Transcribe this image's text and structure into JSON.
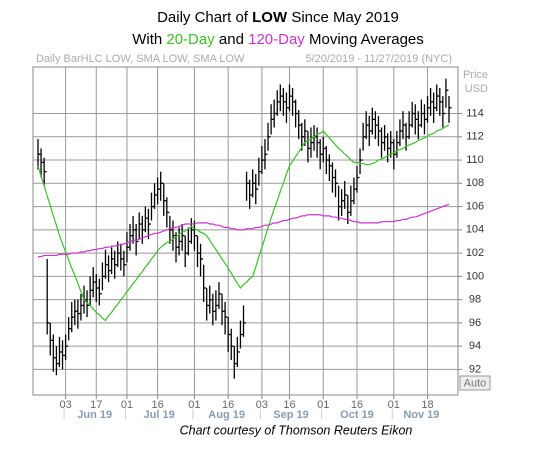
{
  "chart_data": {
    "type": "ohlc",
    "title": {
      "prefix": "Daily Chart of",
      "ticker": "LOW",
      "suffix": "Since May 2019"
    },
    "subtitle": {
      "start": "With",
      "middle": "and",
      "end": "Moving Averages"
    },
    "header": "Daily BarHLC LOW, SMA LOW, SMA LOW",
    "date_range": "5/20/2019 - 11/27/2019 (NYC)",
    "y_axis_label": [
      "Price",
      "USD"
    ],
    "scale_mode": "Auto",
    "caption": "Chart courtesy of Thomson Reuters Eikon",
    "ylim": [
      89.8,
      118
    ],
    "yticks": [
      92,
      94,
      96,
      98,
      100,
      102,
      104,
      106,
      108,
      110,
      112,
      114
    ],
    "grid": true,
    "categories": [
      null,
      null,
      null,
      null,
      null,
      null,
      null,
      null,
      null,
      "03",
      null,
      null,
      null,
      null,
      null,
      null,
      null,
      null,
      null,
      "17",
      null,
      null,
      null,
      null,
      null,
      null,
      null,
      null,
      null,
      "01",
      null,
      null,
      null,
      null,
      null,
      null,
      null,
      null,
      null,
      "16",
      null,
      null,
      null,
      null,
      null,
      null,
      null,
      null,
      null,
      null,
      null,
      "01",
      null,
      null,
      null,
      null,
      null,
      null,
      null,
      null,
      null,
      null,
      "16",
      null,
      null,
      null,
      null,
      null,
      null,
      null,
      null,
      null,
      null,
      "03",
      null,
      null,
      null,
      null,
      null,
      null,
      null,
      null,
      "16",
      null,
      null,
      null,
      null,
      null,
      null,
      null,
      null,
      null,
      null,
      "01",
      null,
      null,
      null,
      null,
      null,
      null,
      null,
      null,
      null,
      null,
      "16",
      null,
      null,
      null,
      null,
      null,
      null,
      null,
      null,
      null,
      null,
      null,
      "01",
      null,
      null,
      null,
      null,
      null,
      null,
      null,
      null,
      null,
      null,
      "18",
      null,
      null,
      null,
      null,
      null,
      null,
      null
    ],
    "months": [
      {
        "label": "Jun 19",
        "start": 9,
        "end": 28
      },
      {
        "label": "Jul 19",
        "start": 29,
        "end": 50
      },
      {
        "label": "Aug 19",
        "start": 51,
        "end": 72
      },
      {
        "label": "Sep 19",
        "start": 73,
        "end": 92
      },
      {
        "label": "Oct 19",
        "start": 93,
        "end": 115
      },
      {
        "label": "Nov 19",
        "start": 116,
        "end": 134
      }
    ],
    "bars": {
      "color": "#000000",
      "high": [
        111.8,
        111.0,
        110.2,
        101.5,
        96.0,
        95.0,
        94.0,
        94.8,
        94.5,
        95.0,
        96.5,
        97.8,
        98.0,
        98.0,
        98.5,
        99.2,
        98.8,
        100.0,
        100.8,
        100.2,
        99.8,
        101.2,
        102.3,
        101.8,
        102.5,
        102.2,
        103.0,
        102.8,
        102.2,
        103.8,
        104.5,
        105.2,
        104.5,
        105.5,
        105.2,
        106.0,
        105.8,
        107.2,
        108.0,
        108.5,
        109.0,
        108.0,
        106.8,
        105.2,
        104.8,
        103.8,
        104.2,
        104.5,
        103.5,
        104.2,
        105.0,
        104.8,
        103.5,
        102.8,
        101.0,
        99.0,
        99.2,
        98.5,
        98.8,
        99.5,
        98.5,
        97.8,
        96.5,
        95.5,
        94.0,
        94.8,
        96.2,
        97.5,
        109.0,
        108.3,
        109.2,
        108.8,
        110.2,
        111.2,
        111.8,
        113.2,
        114.8,
        115.2,
        116.0,
        116.5,
        116.2,
        115.8,
        116.5,
        116.2,
        115.2,
        114.3,
        113.2,
        113.5,
        112.5,
        112.8,
        113.0,
        112.8,
        111.8,
        112.0,
        111.2,
        110.5,
        109.8,
        109.2,
        107.8,
        107.5,
        108.2,
        107.0,
        107.8,
        108.5,
        109.5,
        111.0,
        113.2,
        114.2,
        113.8,
        114.5,
        114.2,
        113.8,
        112.8,
        113.0,
        112.3,
        112.5,
        111.8,
        112.5,
        113.5,
        114.2,
        113.2,
        114.2,
        115.0,
        114.8,
        114.2,
        115.2,
        114.8,
        115.5,
        116.2,
        115.8,
        116.5,
        116.2,
        115.5,
        117.0,
        115.5
      ],
      "low": [
        109.2,
        108.5,
        107.8,
        95.0,
        93.2,
        91.8,
        91.5,
        92.2,
        92.0,
        92.8,
        94.5,
        95.2,
        95.8,
        95.5,
        96.2,
        96.8,
        96.5,
        97.5,
        98.2,
        97.8,
        97.5,
        98.8,
        99.8,
        99.5,
        100.2,
        99.8,
        100.8,
        100.5,
        100.0,
        101.2,
        102.2,
        102.8,
        101.8,
        103.2,
        102.8,
        103.8,
        103.2,
        104.8,
        105.8,
        106.2,
        106.5,
        105.2,
        104.2,
        102.8,
        102.2,
        101.2,
        101.8,
        102.2,
        100.8,
        101.8,
        102.8,
        102.2,
        100.8,
        100.0,
        97.8,
        96.2,
        96.8,
        95.8,
        96.2,
        97.2,
        95.8,
        95.0,
        93.5,
        92.8,
        91.2,
        92.2,
        93.8,
        94.8,
        106.5,
        105.8,
        106.8,
        106.2,
        107.8,
        108.8,
        109.2,
        110.8,
        112.2,
        112.8,
        113.8,
        114.2,
        113.8,
        113.2,
        114.2,
        113.8,
        112.8,
        111.8,
        110.8,
        111.2,
        109.8,
        110.2,
        110.8,
        110.2,
        109.2,
        109.8,
        108.8,
        108.2,
        107.2,
        106.8,
        104.8,
        105.2,
        105.8,
        104.5,
        105.2,
        106.2,
        107.2,
        108.8,
        110.8,
        111.8,
        111.2,
        112.2,
        111.8,
        111.2,
        110.2,
        110.8,
        109.8,
        110.2,
        109.2,
        110.2,
        111.2,
        111.8,
        110.8,
        111.8,
        112.8,
        112.2,
        111.8,
        112.8,
        112.2,
        113.2,
        113.8,
        113.2,
        114.2,
        113.8,
        112.8,
        114.5,
        113.2
      ],
      "close": [
        110.5,
        109.8,
        109.0,
        96.0,
        94.5,
        93.0,
        92.5,
        93.5,
        93.2,
        94.0,
        95.5,
        96.5,
        97.0,
        96.8,
        97.5,
        98.0,
        97.5,
        98.8,
        99.5,
        99.0,
        98.5,
        100.0,
        101.0,
        100.5,
        101.5,
        101.0,
        102.0,
        101.5,
        101.0,
        102.5,
        103.5,
        104.0,
        103.0,
        104.5,
        104.0,
        105.0,
        104.5,
        106.0,
        107.0,
        107.5,
        108.0,
        106.5,
        105.5,
        104.0,
        103.5,
        102.5,
        103.0,
        103.5,
        102.0,
        103.0,
        104.0,
        103.5,
        102.0,
        101.5,
        99.0,
        97.5,
        98.0,
        97.0,
        97.5,
        98.5,
        97.0,
        96.5,
        95.0,
        94.0,
        92.5,
        93.5,
        95.0,
        96.0,
        108.0,
        107.0,
        108.0,
        107.5,
        109.0,
        110.0,
        110.5,
        112.0,
        113.5,
        114.0,
        115.0,
        115.5,
        115.0,
        114.5,
        115.5,
        115.0,
        114.0,
        113.0,
        112.0,
        112.5,
        111.0,
        111.5,
        112.0,
        111.5,
        110.5,
        111.0,
        110.0,
        109.5,
        108.5,
        108.0,
        106.0,
        106.5,
        107.0,
        105.5,
        106.5,
        107.5,
        108.5,
        110.0,
        112.0,
        113.0,
        112.5,
        113.5,
        113.0,
        112.5,
        111.5,
        112.0,
        111.0,
        111.5,
        110.5,
        111.5,
        112.5,
        113.0,
        112.0,
        113.0,
        114.0,
        113.5,
        113.0,
        114.0,
        113.5,
        114.5,
        115.0,
        114.5,
        115.5,
        115.0,
        114.0,
        116.0,
        114.5
      ]
    },
    "series": [
      {
        "name": "20-Day",
        "color": "#3cbf2a",
        "values": [
          109.5,
          108.6,
          107.8,
          106.9,
          106.1,
          105.2,
          104.4,
          103.5,
          102.8,
          102.1,
          101.4,
          100.7,
          100.1,
          99.4,
          98.7,
          98.0,
          97.7,
          97.5,
          97.2,
          96.9,
          96.7,
          96.4,
          96.2,
          96.6,
          96.9,
          97.3,
          97.6,
          98.0,
          98.3,
          98.7,
          99.0,
          99.4,
          99.7,
          100.1,
          100.4,
          100.8,
          101.1,
          101.5,
          101.8,
          102.2,
          102.5,
          102.7,
          102.9,
          103.0,
          103.2,
          103.4,
          103.6,
          103.8,
          103.9,
          104.1,
          104.3,
          104.1,
          104.0,
          103.8,
          103.7,
          103.5,
          103.1,
          102.7,
          102.3,
          101.9,
          101.5,
          101.1,
          100.7,
          100.3,
          99.8,
          99.4,
          99.0,
          99.3,
          99.5,
          99.8,
          100.0,
          100.8,
          101.7,
          102.5,
          103.3,
          104.2,
          105.0,
          105.8,
          106.5,
          107.3,
          108.0,
          108.8,
          109.5,
          109.9,
          110.3,
          110.7,
          111.1,
          111.5,
          111.7,
          111.8,
          112.0,
          112.2,
          112.3,
          112.5,
          112.2,
          111.9,
          111.6,
          111.3,
          111.0,
          110.8,
          110.5,
          110.3,
          110.0,
          109.8,
          109.8,
          109.7,
          109.7,
          109.6,
          109.6,
          109.7,
          109.8,
          110.0,
          110.1,
          110.2,
          110.4,
          110.5,
          110.6,
          110.8,
          110.9,
          111.0,
          111.2,
          111.3,
          111.4,
          111.5,
          111.7,
          111.8,
          111.9,
          112.1,
          112.2,
          112.3,
          112.5,
          112.6,
          112.7,
          112.9,
          113.0
        ]
      },
      {
        "name": "120-Day",
        "color": "#cc33cc",
        "values": [
          101.7,
          101.7,
          101.8,
          101.8,
          101.8,
          101.8,
          101.8,
          101.9,
          101.9,
          101.9,
          101.9,
          102.0,
          102.0,
          102.0,
          102.1,
          102.1,
          102.2,
          102.2,
          102.3,
          102.3,
          102.4,
          102.4,
          102.5,
          102.5,
          102.6,
          102.6,
          102.7,
          102.7,
          102.8,
          102.9,
          103.0,
          103.1,
          103.1,
          103.2,
          103.3,
          103.4,
          103.5,
          103.6,
          103.7,
          103.7,
          103.8,
          103.9,
          104.0,
          104.1,
          104.2,
          104.2,
          104.3,
          104.4,
          104.5,
          104.5,
          104.5,
          104.5,
          104.6,
          104.6,
          104.6,
          104.6,
          104.5,
          104.5,
          104.4,
          104.4,
          104.3,
          104.2,
          104.2,
          104.1,
          104.1,
          104.0,
          104.0,
          104.0,
          104.1,
          104.1,
          104.1,
          104.2,
          104.2,
          104.3,
          104.4,
          104.4,
          104.5,
          104.6,
          104.6,
          104.7,
          104.8,
          104.8,
          104.9,
          105.0,
          105.0,
          105.1,
          105.2,
          105.2,
          105.3,
          105.3,
          105.3,
          105.3,
          105.3,
          105.2,
          105.2,
          105.2,
          105.1,
          105.1,
          105.0,
          105.0,
          104.9,
          104.9,
          104.8,
          104.7,
          104.7,
          104.6,
          104.6,
          104.6,
          104.6,
          104.6,
          104.6,
          104.6,
          104.7,
          104.7,
          104.7,
          104.7,
          104.7,
          104.8,
          104.8,
          104.9,
          104.9,
          105.0,
          105.1,
          105.1,
          105.2,
          105.3,
          105.4,
          105.5,
          105.6,
          105.7,
          105.8,
          105.9,
          106.0,
          106.1,
          106.2
        ]
      }
    ]
  }
}
